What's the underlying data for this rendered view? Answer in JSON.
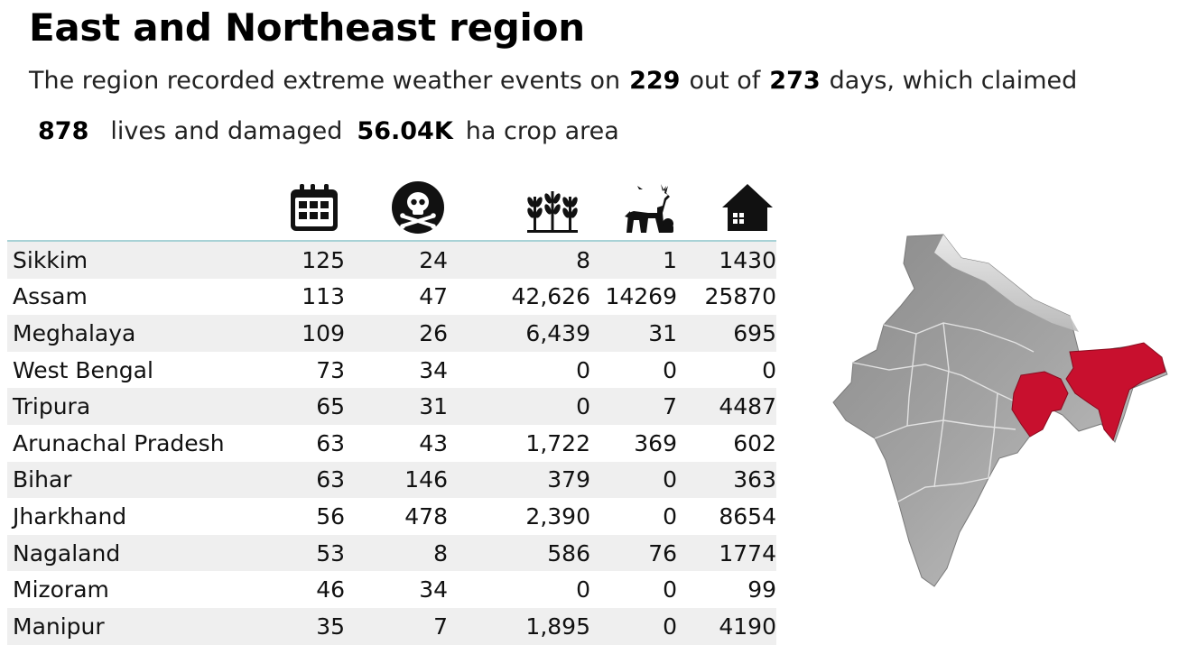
{
  "title": "East and Northeast region",
  "summary": {
    "text1": "The region recorded extreme weather events on",
    "days_count": "229",
    "text2": "out of",
    "total_days": "273",
    "text3": "days, which claimed",
    "lives": "878",
    "text4": "lives and damaged",
    "crop_area": "56.04K",
    "text5": "ha crop area"
  },
  "column_icons": [
    "calendar-icon",
    "skull-crossbones-icon",
    "crops-icon",
    "animals-icon",
    "house-icon"
  ],
  "rows": [
    {
      "state": "Sikkim",
      "days": "125",
      "deaths": "24",
      "crop": "8",
      "animals": "1",
      "houses": "1430"
    },
    {
      "state": "Assam",
      "days": "113",
      "deaths": "47",
      "crop": "42,626",
      "animals": "14269",
      "houses": "25870"
    },
    {
      "state": "Meghalaya",
      "days": "109",
      "deaths": "26",
      "crop": "6,439",
      "animals": "31",
      "houses": "695"
    },
    {
      "state": "West Bengal",
      "days": "73",
      "deaths": "34",
      "crop": "0",
      "animals": "0",
      "houses": "0"
    },
    {
      "state": "Tripura",
      "days": "65",
      "deaths": "31",
      "crop": "0",
      "animals": "7",
      "houses": "4487"
    },
    {
      "state": "Arunachal Pradesh",
      "days": "63",
      "deaths": "43",
      "crop": "1,722",
      "animals": "369",
      "houses": "602"
    },
    {
      "state": "Bihar",
      "days": "63",
      "deaths": "146",
      "crop": "379",
      "animals": "0",
      "houses": "363"
    },
    {
      "state": "Jharkhand",
      "days": "56",
      "deaths": "478",
      "crop": "2,390",
      "animals": "0",
      "houses": "8654"
    },
    {
      "state": "Nagaland",
      "days": "53",
      "deaths": "8",
      "crop": "586",
      "animals": "76",
      "houses": "1774"
    },
    {
      "state": "Mizoram",
      "days": "46",
      "deaths": "34",
      "crop": "0",
      "animals": "0",
      "houses": "99"
    },
    {
      "state": "Manipur",
      "days": "35",
      "deaths": "7",
      "crop": "1,895",
      "animals": "0",
      "houses": "4190"
    }
  ],
  "colors": {
    "highlight_region": "#c8102e",
    "map_base": "#9a9a9a",
    "divider": "#a8d2d6",
    "row_stripe": "#efefef"
  }
}
